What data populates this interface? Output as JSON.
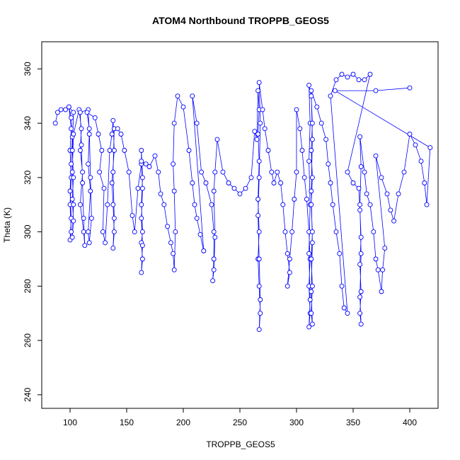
{
  "chart_data": {
    "type": "scatter",
    "title": "ATOM4 Northbound TROPPB_GEOS5",
    "xlabel": "TROPPB_GEOS5",
    "ylabel": "Theta (K)",
    "xlim": [
      75,
      425
    ],
    "ylim": [
      235,
      370
    ],
    "xticks": [
      100,
      150,
      200,
      250,
      300,
      350,
      400
    ],
    "yticks": [
      240,
      260,
      280,
      300,
      320,
      340,
      360
    ],
    "grid": false,
    "legend": "none",
    "connected": true,
    "series_color": "#0000ff",
    "points": [
      [
        87,
        340
      ],
      [
        89,
        344
      ],
      [
        92,
        345
      ],
      [
        96,
        345
      ],
      [
        99,
        346
      ],
      [
        101,
        338
      ],
      [
        100,
        330
      ],
      [
        101,
        320
      ],
      [
        100,
        310
      ],
      [
        101,
        300
      ],
      [
        100,
        297
      ],
      [
        101,
        305
      ],
      [
        100,
        315
      ],
      [
        101,
        325
      ],
      [
        102,
        335
      ],
      [
        101,
        342
      ],
      [
        99,
        346
      ],
      [
        103,
        344
      ],
      [
        102,
        330
      ],
      [
        103,
        320
      ],
      [
        102,
        312
      ],
      [
        103,
        304
      ],
      [
        102,
        298
      ],
      [
        103,
        310
      ],
      [
        102,
        322
      ],
      [
        103,
        336
      ],
      [
        108,
        345
      ],
      [
        110,
        338
      ],
      [
        109,
        330
      ],
      [
        111,
        322
      ],
      [
        109,
        310
      ],
      [
        112,
        300
      ],
      [
        113,
        295
      ],
      [
        112,
        305
      ],
      [
        111,
        318
      ],
      [
        110,
        332
      ],
      [
        109,
        344
      ],
      [
        116,
        345
      ],
      [
        117,
        336
      ],
      [
        116,
        325
      ],
      [
        118,
        315
      ],
      [
        116,
        300
      ],
      [
        117,
        296
      ],
      [
        119,
        305
      ],
      [
        118,
        320
      ],
      [
        117,
        338
      ],
      [
        115,
        344
      ],
      [
        122,
        342
      ],
      [
        125,
        336
      ],
      [
        128,
        330
      ],
      [
        126,
        322
      ],
      [
        130,
        316
      ],
      [
        129,
        300
      ],
      [
        131,
        296
      ],
      [
        133,
        310
      ],
      [
        135,
        330
      ],
      [
        137,
        336
      ],
      [
        138,
        341
      ],
      [
        139,
        330
      ],
      [
        137,
        318
      ],
      [
        138,
        310
      ],
      [
        139,
        300
      ],
      [
        138,
        294
      ],
      [
        139,
        305
      ],
      [
        138,
        322
      ],
      [
        139,
        338
      ],
      [
        142,
        338
      ],
      [
        145,
        336
      ],
      [
        148,
        330
      ],
      [
        152,
        322
      ],
      [
        155,
        306
      ],
      [
        157,
        300
      ],
      [
        160,
        316
      ],
      [
        163,
        325
      ],
      [
        163,
        330
      ],
      [
        164,
        320
      ],
      [
        163,
        310
      ],
      [
        164,
        300
      ],
      [
        163,
        296
      ],
      [
        164,
        290
      ],
      [
        163,
        285
      ],
      [
        164,
        295
      ],
      [
        163,
        305
      ],
      [
        164,
        316
      ],
      [
        163,
        326
      ],
      [
        167,
        325
      ],
      [
        170,
        324
      ],
      [
        175,
        328
      ],
      [
        178,
        322
      ],
      [
        180,
        314
      ],
      [
        183,
        310
      ],
      [
        186,
        302
      ],
      [
        189,
        296
      ],
      [
        191,
        292
      ],
      [
        192,
        286
      ],
      [
        193,
        300
      ],
      [
        192,
        315
      ],
      [
        191,
        325
      ],
      [
        192,
        340
      ],
      [
        195,
        350
      ],
      [
        200,
        346
      ],
      [
        205,
        330
      ],
      [
        208,
        318
      ],
      [
        210,
        310
      ],
      [
        212,
        305
      ],
      [
        215,
        299
      ],
      [
        218,
        293
      ],
      [
        208,
        350
      ],
      [
        212,
        340
      ],
      [
        216,
        322
      ],
      [
        220,
        318
      ],
      [
        225,
        310
      ],
      [
        227,
        300
      ],
      [
        227,
        290
      ],
      [
        226,
        282
      ],
      [
        227,
        286
      ],
      [
        228,
        298
      ],
      [
        227,
        315
      ],
      [
        228,
        322
      ],
      [
        230,
        334
      ],
      [
        235,
        322
      ],
      [
        240,
        318
      ],
      [
        245,
        316
      ],
      [
        250,
        314
      ],
      [
        255,
        316
      ],
      [
        260,
        320
      ],
      [
        263,
        337
      ],
      [
        265,
        334
      ],
      [
        266,
        352
      ],
      [
        267,
        345
      ],
      [
        266,
        336
      ],
      [
        267,
        326
      ],
      [
        266,
        312
      ],
      [
        267,
        300
      ],
      [
        266,
        290
      ],
      [
        267,
        280
      ],
      [
        268,
        270
      ],
      [
        267,
        264
      ],
      [
        268,
        275
      ],
      [
        267,
        290
      ],
      [
        266,
        306
      ],
      [
        267,
        320
      ],
      [
        268,
        340
      ],
      [
        267,
        355
      ],
      [
        270,
        345
      ],
      [
        272,
        338
      ],
      [
        275,
        330
      ],
      [
        278,
        322
      ],
      [
        280,
        318
      ],
      [
        283,
        322
      ],
      [
        286,
        318
      ],
      [
        288,
        310
      ],
      [
        290,
        300
      ],
      [
        292,
        292
      ],
      [
        294,
        285
      ],
      [
        292,
        280
      ],
      [
        294,
        290
      ],
      [
        296,
        300
      ],
      [
        298,
        312
      ],
      [
        300,
        322
      ],
      [
        300,
        345
      ],
      [
        303,
        338
      ],
      [
        305,
        330
      ],
      [
        307,
        320
      ],
      [
        309,
        312
      ],
      [
        311,
        300
      ],
      [
        312,
        290
      ],
      [
        311,
        280
      ],
      [
        312,
        270
      ],
      [
        311,
        265
      ],
      [
        312,
        275
      ],
      [
        311,
        292
      ],
      [
        312,
        310
      ],
      [
        311,
        326
      ],
      [
        312,
        340
      ],
      [
        311,
        354
      ],
      [
        313,
        350
      ],
      [
        314,
        340
      ],
      [
        313,
        330
      ],
      [
        314,
        320
      ],
      [
        313,
        310
      ],
      [
        314,
        300
      ],
      [
        313,
        290
      ],
      [
        314,
        280
      ],
      [
        313,
        270
      ],
      [
        314,
        266
      ],
      [
        313,
        278
      ],
      [
        314,
        296
      ],
      [
        313,
        315
      ],
      [
        314,
        334
      ],
      [
        313,
        352
      ],
      [
        318,
        346
      ],
      [
        322,
        340
      ],
      [
        326,
        334
      ],
      [
        328,
        325
      ],
      [
        330,
        318
      ],
      [
        332,
        310
      ],
      [
        335,
        300
      ],
      [
        338,
        292
      ],
      [
        340,
        280
      ],
      [
        342,
        272
      ],
      [
        345,
        270
      ],
      [
        330,
        350
      ],
      [
        335,
        356
      ],
      [
        340,
        358
      ],
      [
        345,
        357
      ],
      [
        350,
        358
      ],
      [
        355,
        356
      ],
      [
        360,
        356
      ],
      [
        365,
        358
      ],
      [
        345,
        322
      ],
      [
        350,
        318
      ],
      [
        355,
        316
      ],
      [
        356,
        308
      ],
      [
        357,
        298
      ],
      [
        356,
        288
      ],
      [
        357,
        278
      ],
      [
        356,
        270
      ],
      [
        357,
        266
      ],
      [
        356,
        276
      ],
      [
        357,
        292
      ],
      [
        356,
        310
      ],
      [
        357,
        324
      ],
      [
        356,
        335
      ],
      [
        360,
        322
      ],
      [
        362,
        314
      ],
      [
        365,
        310
      ],
      [
        368,
        300
      ],
      [
        370,
        290
      ],
      [
        372,
        286
      ],
      [
        375,
        278
      ],
      [
        376,
        286
      ],
      [
        378,
        294
      ],
      [
        370,
        328
      ],
      [
        375,
        320
      ],
      [
        380,
        314
      ],
      [
        383,
        308
      ],
      [
        386,
        304
      ],
      [
        390,
        314
      ],
      [
        395,
        322
      ],
      [
        400,
        336
      ],
      [
        405,
        332
      ],
      [
        410,
        326
      ],
      [
        413,
        318
      ],
      [
        415,
        310
      ],
      [
        418,
        331
      ],
      [
        334,
        352
      ],
      [
        370,
        352
      ],
      [
        400,
        353
      ]
    ]
  }
}
